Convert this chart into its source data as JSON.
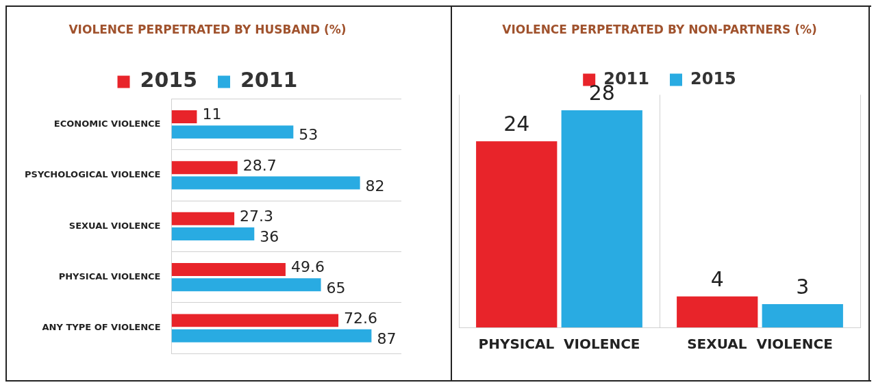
{
  "chart_data": [
    {
      "type": "bar",
      "orientation": "horizontal",
      "title": "VIOLENCE PERPETRATED BY HUSBAND (%)",
      "categories": [
        "ECONOMIC VIOLENCE",
        "PSYCHOLOGICAL VIOLENCE",
        "SEXUAL VIOLENCE",
        "PHYSICAL VIOLENCE",
        "ANY TYPE OF VIOLENCE"
      ],
      "series": [
        {
          "name": "2015",
          "color": "#e8242a",
          "values": [
            11,
            28.7,
            27.3,
            49.6,
            72.6
          ]
        },
        {
          "name": "2011",
          "color": "#29abe2",
          "values": [
            53,
            82,
            36,
            65,
            87
          ]
        }
      ],
      "data_labels": true,
      "legend": "top",
      "grid": "y"
    },
    {
      "type": "bar",
      "title": "VIOLENCE PERPETRATED BY NON-PARTNERS (%)",
      "categories": [
        "PHYSICAL  VIOLENCE",
        "SEXUAL  VIOLENCE"
      ],
      "series": [
        {
          "name": "2011",
          "color": "#e8242a",
          "values": [
            24,
            4
          ]
        },
        {
          "name": "2015",
          "color": "#29abe2",
          "values": [
            28,
            3
          ]
        }
      ],
      "data_labels": true,
      "legend": "top",
      "grid": "x"
    }
  ]
}
